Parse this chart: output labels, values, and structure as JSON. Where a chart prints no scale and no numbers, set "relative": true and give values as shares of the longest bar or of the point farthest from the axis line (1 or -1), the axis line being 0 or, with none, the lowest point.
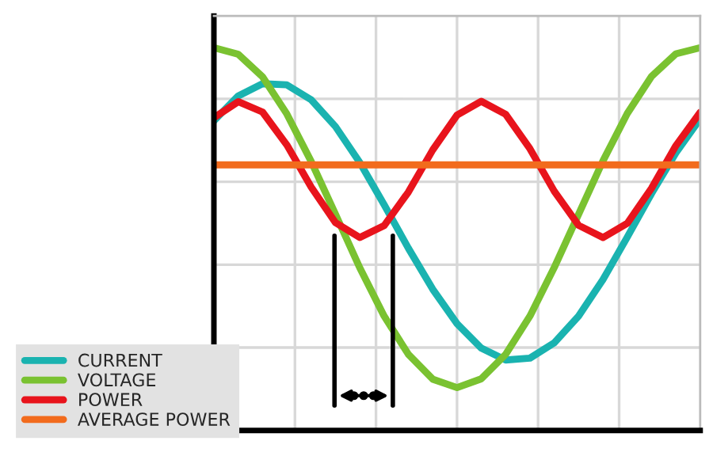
{
  "chart_data": {
    "type": "line",
    "relative": true,
    "grid": true,
    "tick_labels": false,
    "legend": "bottom left",
    "categories": [
      null,
      null,
      null,
      null,
      null,
      null,
      null,
      null,
      null,
      null,
      null,
      null,
      null,
      null,
      null,
      null,
      null,
      null,
      null,
      null,
      null
    ],
    "series": [
      {
        "name": "CURRENT",
        "color": "#1ab3b0",
        "values": [
          0.809,
          0.874,
          0.906,
          0.903,
          0.864,
          0.794,
          0.7,
          0.59,
          0.476,
          0.369,
          0.279,
          0.215,
          0.184,
          0.189,
          0.229,
          0.299,
          0.394,
          0.505,
          0.619,
          0.725,
          0.814
        ]
      },
      {
        "name": "VOLTAGE",
        "color": "#7ac231",
        "values": [
          1.0,
          0.983,
          0.924,
          0.827,
          0.703,
          0.565,
          0.425,
          0.299,
          0.199,
          0.134,
          0.112,
          0.135,
          0.199,
          0.299,
          0.426,
          0.565,
          0.704,
          0.828,
          0.925,
          0.984,
          1.0
        ]
      },
      {
        "name": "POWER",
        "color": "#e8141c",
        "values": [
          0.817,
          0.859,
          0.832,
          0.746,
          0.636,
          0.543,
          0.504,
          0.535,
          0.623,
          0.733,
          0.824,
          0.86,
          0.826,
          0.736,
          0.625,
          0.536,
          0.504,
          0.541,
          0.633,
          0.744,
          0.831
        ]
      },
      {
        "name": "AVERAGE POWER",
        "color": "#f26b1d",
        "values": [
          0.694,
          0.694,
          0.694,
          0.694,
          0.694,
          0.694,
          0.694,
          0.694,
          0.694,
          0.694,
          0.694,
          0.694,
          0.694,
          0.694,
          0.694,
          0.694,
          0.694,
          0.694,
          0.694,
          0.694,
          0.694
        ]
      }
    ]
  }
}
